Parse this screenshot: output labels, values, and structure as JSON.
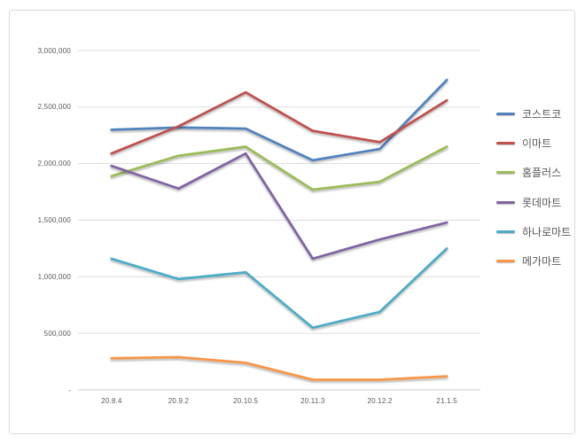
{
  "chart_data": {
    "type": "line",
    "categories": [
      "20.8.4",
      "20.9.2",
      "20.10.5",
      "20.11.3",
      "20.12.2",
      "21.1.5"
    ],
    "series": [
      {
        "name": "코스트코",
        "color": "#4F81BD",
        "values": [
          2300000,
          2320000,
          2310000,
          2030000,
          2130000,
          2740000
        ]
      },
      {
        "name": "이마트",
        "color": "#C0504D",
        "values": [
          2090000,
          2330000,
          2630000,
          2290000,
          2190000,
          2560000
        ]
      },
      {
        "name": "홈플러스",
        "color": "#9BBB59",
        "values": [
          1890000,
          2070000,
          2150000,
          1770000,
          1840000,
          2150000
        ]
      },
      {
        "name": "롯데마트",
        "color": "#8064A2",
        "values": [
          1980000,
          1780000,
          2090000,
          1160000,
          1330000,
          1480000
        ]
      },
      {
        "name": "하나로마트",
        "color": "#4BACC6",
        "values": [
          1160000,
          980000,
          1040000,
          550000,
          690000,
          1250000
        ]
      },
      {
        "name": "메가마트",
        "color": "#F79646",
        "values": [
          280000,
          290000,
          240000,
          90000,
          90000,
          120000
        ]
      }
    ],
    "y_axis": {
      "min": 0,
      "max": 3000000,
      "step": 500000,
      "tick_labels": [
        "-",
        "500,000",
        "1,000,000",
        "1,500,000",
        "2,000,000",
        "2,500,000",
        "3,000,000"
      ]
    },
    "x_axis_label": "",
    "title": "",
    "legend_position": "right",
    "grid": true
  },
  "colors": {
    "grid": "#dcdcdc",
    "axis": "#c9c9c9",
    "tick_text": "#595959",
    "frame_border": "#d9d9d9",
    "background": "#ffffff"
  }
}
